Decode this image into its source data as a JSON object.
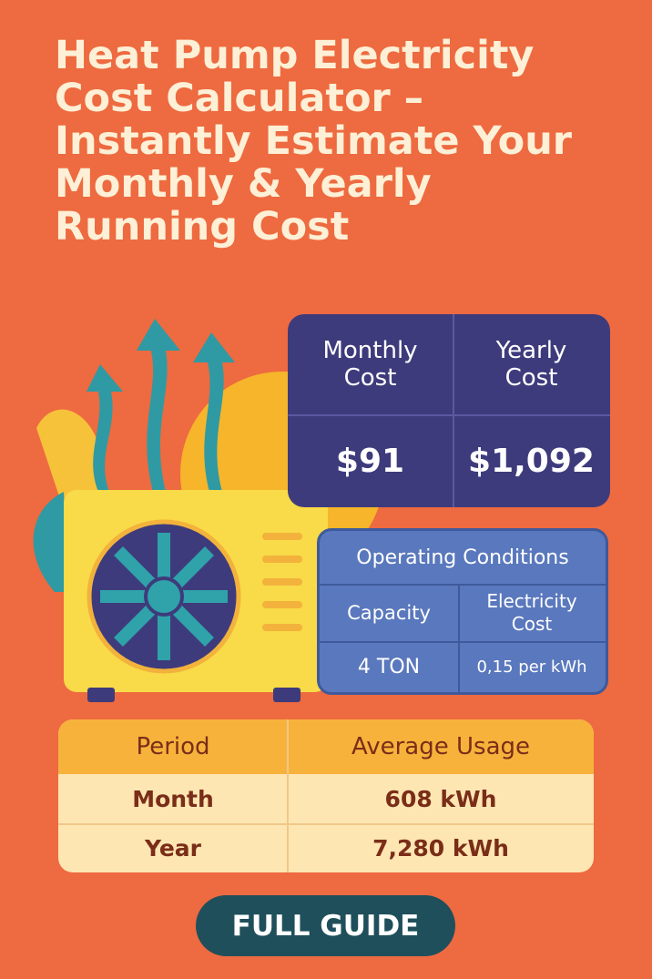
{
  "header": {
    "title": "Heat Pump Electricity Cost Calculator – Instantly Estimate Your Monthly & Yearly Running Cost"
  },
  "cost_table": {
    "headers": [
      "Monthly Cost",
      "Yearly Cost"
    ],
    "values": [
      "$91",
      "$1,092"
    ]
  },
  "operating_conditions": {
    "title": "Operating Conditions",
    "headers": [
      "Capacity",
      "Electricity Cost"
    ],
    "values": [
      "4 TON",
      "0,15 per kWh"
    ]
  },
  "usage_table": {
    "headers": [
      "Period",
      "Average Usage"
    ],
    "rows": [
      [
        "Month",
        "608 kWh"
      ],
      [
        "Year",
        "7,280 kWh"
      ]
    ]
  },
  "button": {
    "label": "FULL GUIDE"
  }
}
